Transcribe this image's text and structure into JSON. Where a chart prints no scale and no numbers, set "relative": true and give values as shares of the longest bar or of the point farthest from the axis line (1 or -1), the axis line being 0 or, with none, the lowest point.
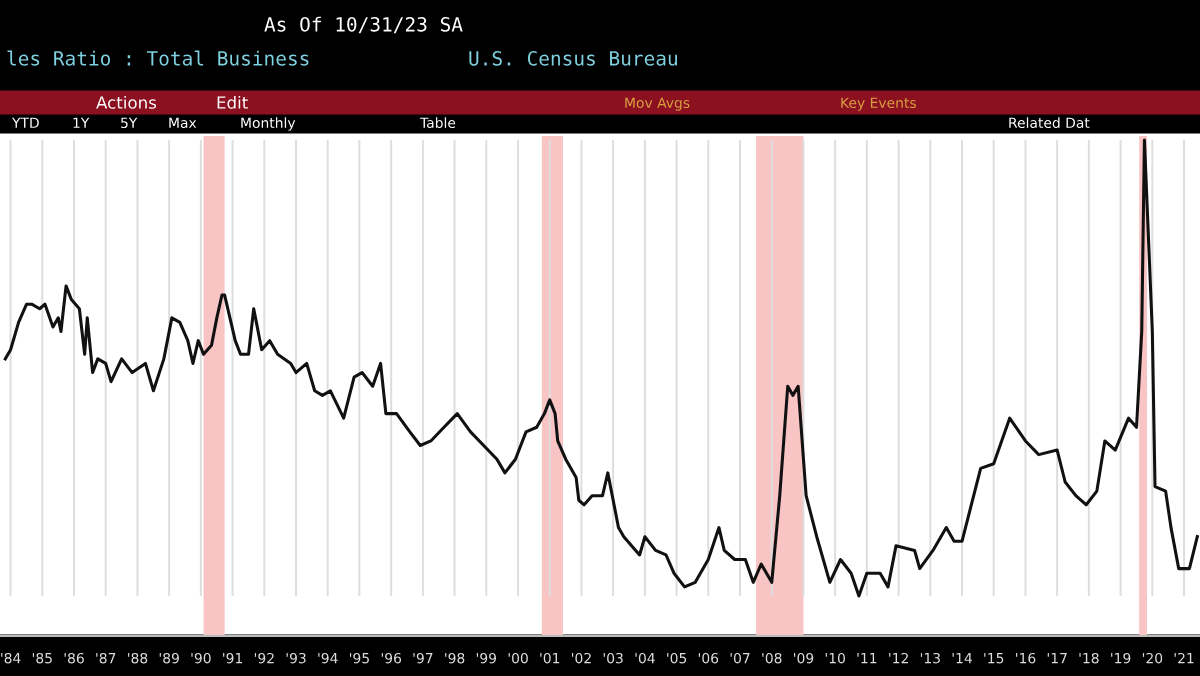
{
  "chart_data": {
    "type": "line",
    "relative": true,
    "title": "les Ratio : Total Business",
    "subtitle": "U.S. Census Bureau",
    "annotations": [
      "As Of 10/31/23 SA",
      "Actions",
      "Edit",
      "Mov Avgs",
      "Key Events",
      "YTD",
      "1Y",
      "5Y",
      "Max",
      "Monthly",
      "Table",
      "Related Dat"
    ],
    "xlim": [
      "1984-03-01",
      "2022-01-01"
    ],
    "xticks": [
      {
        "value": "1984-07-01",
        "label": "'84"
      },
      {
        "value": "1985-07-01",
        "label": "'85"
      },
      {
        "value": "1986-07-01",
        "label": "'86"
      },
      {
        "value": "1987-07-01",
        "label": "'87"
      },
      {
        "value": "1988-07-01",
        "label": "'88"
      },
      {
        "value": "1989-07-01",
        "label": "'89"
      },
      {
        "value": "1990-07-01",
        "label": "'90"
      },
      {
        "value": "1991-07-01",
        "label": "'91"
      },
      {
        "value": "1992-07-01",
        "label": "'92"
      },
      {
        "value": "1993-07-01",
        "label": "'93"
      },
      {
        "value": "1994-07-01",
        "label": "'94"
      },
      {
        "value": "1995-07-01",
        "label": "'95"
      },
      {
        "value": "1996-07-01",
        "label": "'96"
      },
      {
        "value": "1997-07-01",
        "label": "'97"
      },
      {
        "value": "1998-07-01",
        "label": "'98"
      },
      {
        "value": "1999-07-01",
        "label": "'99"
      },
      {
        "value": "2000-07-01",
        "label": "'00"
      },
      {
        "value": "2001-07-01",
        "label": "'01"
      },
      {
        "value": "2002-07-01",
        "label": "'02"
      },
      {
        "value": "2003-07-01",
        "label": "'03"
      },
      {
        "value": "2004-07-01",
        "label": "'04"
      },
      {
        "value": "2005-07-01",
        "label": "'05"
      },
      {
        "value": "2006-07-01",
        "label": "'06"
      },
      {
        "value": "2007-07-01",
        "label": "'07"
      },
      {
        "value": "2008-07-01",
        "label": "'08"
      },
      {
        "value": "2009-07-01",
        "label": "'09"
      },
      {
        "value": "2010-07-01",
        "label": "'10"
      },
      {
        "value": "2011-07-01",
        "label": "'11"
      },
      {
        "value": "2012-07-01",
        "label": "'12"
      },
      {
        "value": "2013-07-01",
        "label": "'13"
      },
      {
        "value": "2014-07-01",
        "label": "'14"
      },
      {
        "value": "2015-07-01",
        "label": "'15"
      },
      {
        "value": "2016-07-01",
        "label": "'16"
      },
      {
        "value": "2017-07-01",
        "label": "'17"
      },
      {
        "value": "2018-07-01",
        "label": "'18"
      },
      {
        "value": "2019-07-01",
        "label": "'19"
      },
      {
        "value": "2020-07-01",
        "label": "'20"
      },
      {
        "value": "2021-07-01",
        "label": "'21"
      }
    ],
    "grid": "x",
    "bands": [
      {
        "axis": "x",
        "from": "1990-08",
        "to": "1991-04",
        "color": "#f8c4c4"
      },
      {
        "axis": "x",
        "from": "2001-04",
        "to": "2001-12",
        "color": "#f8c4c4"
      },
      {
        "axis": "x",
        "from": "2008-01",
        "to": "2009-07",
        "color": "#f8c4c4"
      },
      {
        "axis": "x",
        "from": "2020-02",
        "to": "2020-05",
        "color": "#f8c4c4"
      }
    ],
    "series": [
      {
        "color": "#111111",
        "x": [
          "1984-05",
          "1984-07",
          "1984-10",
          "1985-01",
          "1985-03",
          "1985-06",
          "1985-08",
          "1985-11",
          "1986-01",
          "1986-02",
          "1986-04",
          "1986-06",
          "1986-09",
          "1986-11",
          "1986-12",
          "1987-02",
          "1987-04",
          "1987-07",
          "1987-09",
          "1988-01",
          "1988-05",
          "1988-10",
          "1989-01",
          "1989-05",
          "1989-08",
          "1989-11",
          "1990-02",
          "1990-04",
          "1990-06",
          "1990-08",
          "1990-11",
          "1991-01",
          "1991-03",
          "1991-04",
          "1991-08",
          "1991-10",
          "1992-01",
          "1992-03",
          "1992-06",
          "1992-09",
          "1992-12",
          "1993-05",
          "1993-07",
          "1993-11",
          "1994-02",
          "1994-05",
          "1994-08",
          "1995-01",
          "1995-05",
          "1995-08",
          "1995-12",
          "1996-03",
          "1996-05",
          "1996-09",
          "1997-02",
          "1997-06",
          "1997-10",
          "1998-03",
          "1998-08",
          "1999-01",
          "1999-06",
          "1999-11",
          "2000-02",
          "2000-06",
          "2000-10",
          "2001-02",
          "2001-05",
          "2001-07",
          "2001-09",
          "2001-10",
          "2002-01",
          "2002-05",
          "2002-06",
          "2002-08",
          "2002-11",
          "2003-03",
          "2003-05",
          "2003-09",
          "2003-11",
          "2004-05",
          "2004-07",
          "2004-11",
          "2005-03",
          "2005-06",
          "2005-10",
          "2006-02",
          "2006-07",
          "2006-11",
          "2007-01",
          "2007-05",
          "2007-09",
          "2007-12",
          "2008-03",
          "2008-07",
          "2008-10",
          "2009-01",
          "2009-03",
          "2009-05",
          "2009-08",
          "2009-12",
          "2010-05",
          "2010-09",
          "2011-01",
          "2011-04",
          "2011-07",
          "2011-12",
          "2012-03",
          "2012-06",
          "2013-01",
          "2013-03",
          "2013-08",
          "2014-01",
          "2014-04",
          "2014-07",
          "2015-02",
          "2015-07",
          "2016-01",
          "2016-07",
          "2016-12",
          "2017-07",
          "2017-10",
          "2018-02",
          "2018-06",
          "2018-10",
          "2019-01",
          "2019-05",
          "2019-10",
          "2020-01",
          "2020-03",
          "2020-04",
          "2020-07",
          "2020-08",
          "2020-12",
          "2021-02",
          "2021-05",
          "2021-09",
          "2021-12"
        ],
        "values": [
          0.52,
          0.54,
          0.6,
          0.64,
          0.64,
          0.63,
          0.64,
          0.59,
          0.61,
          0.58,
          0.68,
          0.65,
          0.63,
          0.53,
          0.61,
          0.49,
          0.52,
          0.51,
          0.47,
          0.52,
          0.49,
          0.51,
          0.45,
          0.52,
          0.61,
          0.6,
          0.56,
          0.51,
          0.56,
          0.53,
          0.55,
          0.61,
          0.66,
          0.66,
          0.56,
          0.53,
          0.53,
          0.63,
          0.54,
          0.56,
          0.53,
          0.51,
          0.49,
          0.51,
          0.45,
          0.44,
          0.45,
          0.39,
          0.48,
          0.49,
          0.46,
          0.51,
          0.4,
          0.4,
          0.36,
          0.33,
          0.34,
          0.37,
          0.4,
          0.36,
          0.33,
          0.3,
          0.27,
          0.3,
          0.36,
          0.37,
          0.4,
          0.43,
          0.4,
          0.34,
          0.3,
          0.26,
          0.21,
          0.2,
          0.22,
          0.22,
          0.27,
          0.15,
          0.13,
          0.09,
          0.13,
          0.1,
          0.09,
          0.05,
          0.02,
          0.03,
          0.08,
          0.15,
          0.1,
          0.08,
          0.08,
          0.03,
          0.07,
          0.03,
          0.22,
          0.46,
          0.44,
          0.46,
          0.22,
          0.13,
          0.03,
          0.08,
          0.05,
          0.0,
          0.05,
          0.05,
          0.02,
          0.11,
          0.1,
          0.06,
          0.1,
          0.15,
          0.12,
          0.12,
          0.28,
          0.29,
          0.39,
          0.34,
          0.31,
          0.32,
          0.25,
          0.22,
          0.2,
          0.23,
          0.34,
          0.32,
          0.39,
          0.37,
          0.58,
          1.0,
          0.58,
          0.24,
          0.23,
          0.15,
          0.06,
          0.06,
          0.13
        ]
      }
    ]
  }
}
